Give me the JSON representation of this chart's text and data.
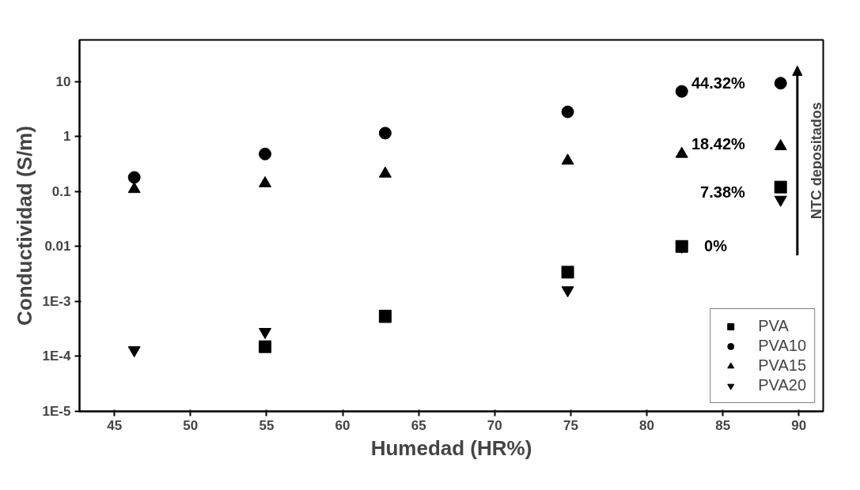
{
  "chart_data": {
    "type": "scatter",
    "xlabel": "Humedad (HR%)",
    "ylabel": "Conductividad (S/m)",
    "log": "y",
    "xlim": [
      42.7,
      91.6
    ],
    "xticks": [
      45,
      50,
      55,
      60,
      65,
      70,
      75,
      80,
      85,
      90
    ],
    "ylim": [
      1e-05,
      57
    ],
    "yticks": [
      {
        "value": 1e-05,
        "label": "1E-5"
      },
      {
        "value": 0.0001,
        "label": "1E-4"
      },
      {
        "value": 0.001,
        "label": "1E-3"
      },
      0.01,
      0.1,
      1,
      10
    ],
    "x": [
      46.3,
      54.9,
      62.8,
      74.8,
      82.3,
      88.8
    ],
    "series": [
      {
        "name": "PVA",
        "color": "#000000",
        "marker": "square",
        "values": [
          null,
          0.00015,
          0.00053,
          0.0034,
          0.01,
          0.12
        ]
      },
      {
        "name": "PVA10",
        "color": "#000000",
        "marker": "circle",
        "values": [
          0.18,
          0.48,
          1.15,
          2.8,
          6.6,
          9.3
        ]
      },
      {
        "name": "PVA15",
        "color": "#000000",
        "marker": "triangle",
        "values": [
          0.11,
          0.14,
          0.21,
          0.36,
          0.48,
          0.66
        ]
      },
      {
        "name": "PVA20",
        "color": "#000000",
        "values": [
          0.00013,
          0.00028,
          0.0006,
          0.0016,
          0.01,
          0.071
        ]
      }
    ],
    "annotations": [
      "44.32%",
      "18.42%",
      "7.38%",
      "0%",
      "NTC depositados"
    ],
    "legend": "bottom right",
    "grid": false
  }
}
